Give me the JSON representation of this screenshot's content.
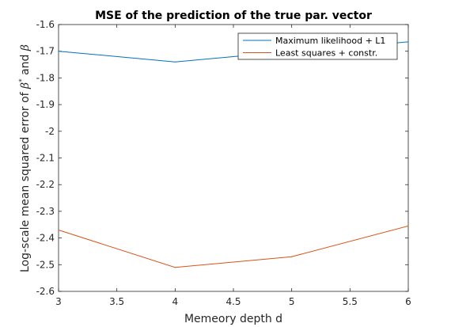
{
  "chart_data": {
    "type": "line",
    "title": "MSE of the prediction of the true par. vector",
    "xlabel": "Memeory depth d",
    "ylabel": "Log-scale mean squared error of β* and β",
    "ylabel_parts": {
      "prefix": "Log-scale mean squared error of ",
      "sym1": "β",
      "sup1": "*",
      "mid": " and ",
      "sym2": "β"
    },
    "xlim": [
      3,
      6
    ],
    "ylim": [
      -2.6,
      -1.6
    ],
    "x_ticks": [
      "3",
      "3.5",
      "4",
      "4.5",
      "5",
      "5.5",
      "6"
    ],
    "y_ticks": [
      "-1.6",
      "-1.7",
      "-1.8",
      "-1.9",
      "-2",
      "-2.1",
      "-2.2",
      "-2.3",
      "-2.4",
      "-2.5",
      "-2.6"
    ],
    "grid": false,
    "legend_position": "top-right",
    "x": [
      3,
      4,
      5,
      6
    ],
    "series": [
      {
        "name": "Maximum likelihood + L1",
        "color": "#0072bd",
        "values": [
          -1.7,
          -1.74,
          -1.7,
          -1.665
        ]
      },
      {
        "name": "Least squares + constr.",
        "color": "#d95319",
        "values": [
          -2.37,
          -2.51,
          -2.47,
          -2.355
        ]
      }
    ]
  }
}
